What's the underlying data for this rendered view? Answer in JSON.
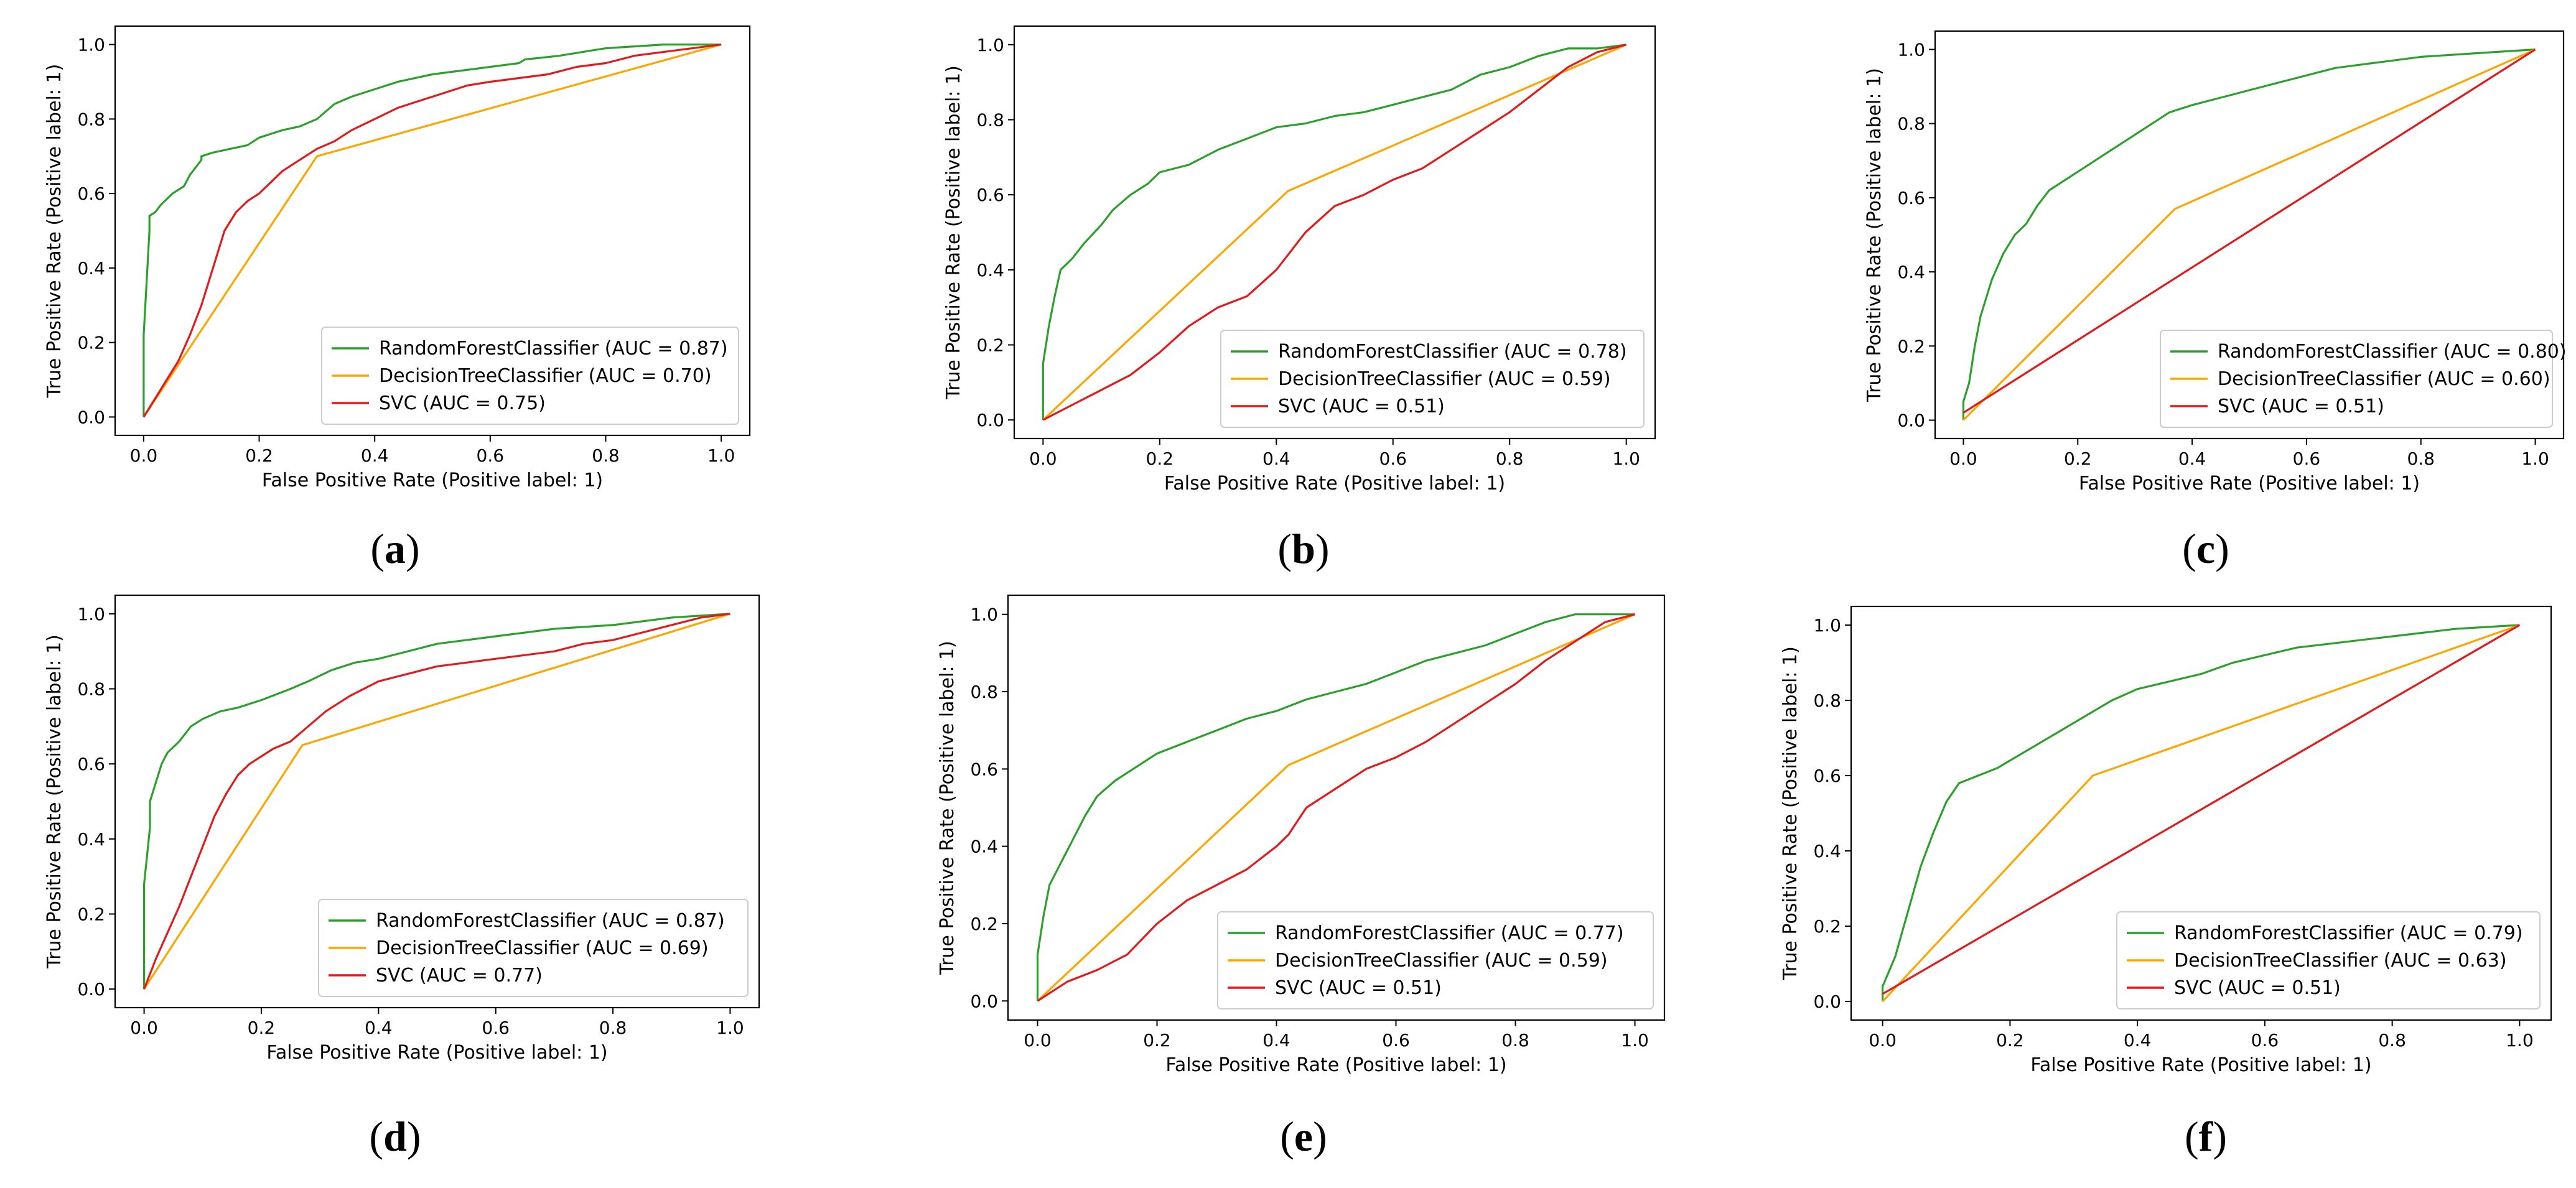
{
  "chart_data": [
    {
      "type": "line",
      "panel_label": "(a)",
      "label_letter": "a",
      "xlabel": "False Positive Rate (Positive label: 1)",
      "ylabel": "True Positive Rate (Positive label: 1)",
      "xlim": [
        0,
        1
      ],
      "ylim": [
        0,
        1
      ],
      "xticks": [
        "0.0",
        "0.2",
        "0.4",
        "0.6",
        "0.8",
        "1.0"
      ],
      "yticks": [
        "0.0",
        "0.2",
        "0.4",
        "0.6",
        "0.8",
        "1.0"
      ],
      "grid": false,
      "legend": "lower-right",
      "series": [
        {
          "name": "RandomForestClassifier (AUC = 0.87)",
          "color": "#2ca02c",
          "x": [
            0,
            0,
            0.01,
            0.01,
            0.02,
            0.03,
            0.05,
            0.06,
            0.07,
            0.08,
            0.1,
            0.1,
            0.12,
            0.15,
            0.18,
            0.2,
            0.24,
            0.27,
            0.3,
            0.33,
            0.36,
            0.4,
            0.44,
            0.5,
            0.55,
            0.6,
            0.65,
            0.66,
            0.72,
            0.8,
            0.9,
            1.0
          ],
          "y": [
            0,
            0.22,
            0.5,
            0.54,
            0.55,
            0.57,
            0.6,
            0.61,
            0.62,
            0.65,
            0.69,
            0.7,
            0.71,
            0.72,
            0.73,
            0.75,
            0.77,
            0.78,
            0.8,
            0.84,
            0.86,
            0.88,
            0.9,
            0.92,
            0.93,
            0.94,
            0.95,
            0.96,
            0.97,
            0.99,
            1.0,
            1.0
          ]
        },
        {
          "name": "DecisionTreeClassifier (AUC = 0.70)",
          "color": "#ffa500",
          "x": [
            0,
            0.3,
            1.0
          ],
          "y": [
            0,
            0.7,
            1.0
          ]
        },
        {
          "name": "SVC (AUC = 0.75)",
          "color": "#e31a1c",
          "x": [
            0,
            0.02,
            0.04,
            0.06,
            0.08,
            0.1,
            0.12,
            0.14,
            0.16,
            0.18,
            0.2,
            0.22,
            0.24,
            0.26,
            0.28,
            0.3,
            0.33,
            0.36,
            0.4,
            0.44,
            0.48,
            0.52,
            0.56,
            0.6,
            0.65,
            0.7,
            0.75,
            0.8,
            0.85,
            0.9,
            0.95,
            1.0
          ],
          "y": [
            0,
            0.05,
            0.1,
            0.15,
            0.22,
            0.3,
            0.4,
            0.5,
            0.55,
            0.58,
            0.6,
            0.63,
            0.66,
            0.68,
            0.7,
            0.72,
            0.74,
            0.77,
            0.8,
            0.83,
            0.85,
            0.87,
            0.89,
            0.9,
            0.91,
            0.92,
            0.94,
            0.95,
            0.97,
            0.98,
            0.99,
            1.0
          ]
        }
      ]
    },
    {
      "type": "line",
      "panel_label": "(b)",
      "label_letter": "b",
      "xlabel": "False Positive Rate (Positive label: 1)",
      "ylabel": "True Positive Rate (Positive label: 1)",
      "xlim": [
        0,
        1
      ],
      "ylim": [
        0,
        1
      ],
      "xticks": [
        "0.0",
        "0.2",
        "0.4",
        "0.6",
        "0.8",
        "1.0"
      ],
      "yticks": [
        "0.0",
        "0.2",
        "0.4",
        "0.6",
        "0.8",
        "1.0"
      ],
      "grid": false,
      "legend": "lower-right",
      "series": [
        {
          "name": "RandomForestClassifier (AUC = 0.78)",
          "color": "#2ca02c",
          "x": [
            0,
            0,
            0.01,
            0.02,
            0.03,
            0.05,
            0.07,
            0.1,
            0.12,
            0.15,
            0.18,
            0.2,
            0.25,
            0.3,
            0.35,
            0.4,
            0.45,
            0.5,
            0.55,
            0.6,
            0.65,
            0.7,
            0.75,
            0.8,
            0.85,
            0.9,
            0.95,
            1.0
          ],
          "y": [
            0,
            0.15,
            0.25,
            0.33,
            0.4,
            0.43,
            0.47,
            0.52,
            0.56,
            0.6,
            0.63,
            0.66,
            0.68,
            0.72,
            0.75,
            0.78,
            0.79,
            0.81,
            0.82,
            0.84,
            0.86,
            0.88,
            0.92,
            0.94,
            0.97,
            0.99,
            0.99,
            1.0
          ]
        },
        {
          "name": "DecisionTreeClassifier (AUC = 0.59)",
          "color": "#ffa500",
          "x": [
            0,
            0.42,
            1.0
          ],
          "y": [
            0,
            0.61,
            1.0
          ]
        },
        {
          "name": "SVC (AUC = 0.51)",
          "color": "#e31a1c",
          "x": [
            0,
            0.05,
            0.1,
            0.15,
            0.2,
            0.25,
            0.3,
            0.35,
            0.4,
            0.42,
            0.45,
            0.5,
            0.55,
            0.6,
            0.65,
            0.7,
            0.75,
            0.8,
            0.85,
            0.9,
            0.95,
            1.0
          ],
          "y": [
            0,
            0.04,
            0.08,
            0.12,
            0.18,
            0.25,
            0.3,
            0.33,
            0.4,
            0.44,
            0.5,
            0.57,
            0.6,
            0.64,
            0.67,
            0.72,
            0.77,
            0.82,
            0.88,
            0.94,
            0.98,
            1.0
          ]
        }
      ]
    },
    {
      "type": "line",
      "panel_label": "(c)",
      "label_letter": "c",
      "xlabel": "False Positive Rate (Positive label: 1)",
      "ylabel": "True Positive Rate (Positive label: 1)",
      "xlim": [
        0,
        1
      ],
      "ylim": [
        0,
        1
      ],
      "xticks": [
        "0.0",
        "0.2",
        "0.4",
        "0.6",
        "0.8",
        "1.0"
      ],
      "yticks": [
        "0.0",
        "0.2",
        "0.4",
        "0.6",
        "0.8",
        "1.0"
      ],
      "grid": false,
      "legend": "lower-right",
      "series": [
        {
          "name": "RandomForestClassifier (AUC = 0.80)",
          "color": "#2ca02c",
          "x": [
            0,
            0,
            0.01,
            0.02,
            0.03,
            0.04,
            0.05,
            0.07,
            0.09,
            0.11,
            0.13,
            0.15,
            0.18,
            0.2,
            0.23,
            0.26,
            0.3,
            0.33,
            0.36,
            0.4,
            0.45,
            0.5,
            0.55,
            0.6,
            0.65,
            0.7,
            0.75,
            0.8,
            0.9,
            1.0
          ],
          "y": [
            0,
            0.05,
            0.1,
            0.2,
            0.28,
            0.33,
            0.38,
            0.45,
            0.5,
            0.53,
            0.58,
            0.62,
            0.65,
            0.67,
            0.7,
            0.73,
            0.77,
            0.8,
            0.83,
            0.85,
            0.87,
            0.89,
            0.91,
            0.93,
            0.95,
            0.96,
            0.97,
            0.98,
            0.99,
            1.0
          ]
        },
        {
          "name": "DecisionTreeClassifier (AUC = 0.60)",
          "color": "#ffa500",
          "x": [
            0,
            0.37,
            1.0
          ],
          "y": [
            0,
            0.57,
            1.0
          ]
        },
        {
          "name": "SVC (AUC = 0.51)",
          "color": "#e31a1c",
          "x": [
            0,
            1.0
          ],
          "y": [
            0.02,
            1.0
          ]
        }
      ]
    },
    {
      "type": "line",
      "panel_label": "(d)",
      "label_letter": "d",
      "xlabel": "False Positive Rate (Positive label: 1)",
      "ylabel": "True Positive Rate (Positive label: 1)",
      "xlim": [
        0,
        1
      ],
      "ylim": [
        0,
        1
      ],
      "xticks": [
        "0.0",
        "0.2",
        "0.4",
        "0.6",
        "0.8",
        "1.0"
      ],
      "yticks": [
        "0.0",
        "0.2",
        "0.4",
        "0.6",
        "0.8",
        "1.0"
      ],
      "grid": false,
      "legend": "lower-right",
      "series": [
        {
          "name": "RandomForestClassifier (AUC = 0.87)",
          "color": "#2ca02c",
          "x": [
            0,
            0,
            0.01,
            0.01,
            0.02,
            0.03,
            0.04,
            0.06,
            0.08,
            0.1,
            0.13,
            0.16,
            0.2,
            0.25,
            0.28,
            0.32,
            0.36,
            0.4,
            0.45,
            0.5,
            0.55,
            0.6,
            0.7,
            0.8,
            0.9,
            1.0
          ],
          "y": [
            0,
            0.28,
            0.43,
            0.5,
            0.55,
            0.6,
            0.63,
            0.66,
            0.7,
            0.72,
            0.74,
            0.75,
            0.77,
            0.8,
            0.82,
            0.85,
            0.87,
            0.88,
            0.9,
            0.92,
            0.93,
            0.94,
            0.96,
            0.97,
            0.99,
            1.0
          ]
        },
        {
          "name": "DecisionTreeClassifier (AUC = 0.69)",
          "color": "#ffa500",
          "x": [
            0,
            0.27,
            1.0
          ],
          "y": [
            0,
            0.65,
            1.0
          ]
        },
        {
          "name": "SVC (AUC = 0.77)",
          "color": "#e31a1c",
          "x": [
            0,
            0.02,
            0.04,
            0.06,
            0.08,
            0.1,
            0.12,
            0.14,
            0.16,
            0.18,
            0.2,
            0.22,
            0.25,
            0.28,
            0.31,
            0.35,
            0.4,
            0.45,
            0.5,
            0.55,
            0.6,
            0.65,
            0.7,
            0.75,
            0.8,
            0.85,
            0.9,
            0.95,
            1.0
          ],
          "y": [
            0,
            0.08,
            0.15,
            0.22,
            0.3,
            0.38,
            0.46,
            0.52,
            0.57,
            0.6,
            0.62,
            0.64,
            0.66,
            0.7,
            0.74,
            0.78,
            0.82,
            0.84,
            0.86,
            0.87,
            0.88,
            0.89,
            0.9,
            0.92,
            0.93,
            0.95,
            0.97,
            0.99,
            1.0
          ]
        }
      ]
    },
    {
      "type": "line",
      "panel_label": "(e)",
      "label_letter": "e",
      "xlabel": "False Positive Rate (Positive label: 1)",
      "ylabel": "True Positive Rate (Positive label: 1)",
      "xlim": [
        0,
        1
      ],
      "ylim": [
        0,
        1
      ],
      "xticks": [
        "0.0",
        "0.2",
        "0.4",
        "0.6",
        "0.8",
        "1.0"
      ],
      "yticks": [
        "0.0",
        "0.2",
        "0.4",
        "0.6",
        "0.8",
        "1.0"
      ],
      "grid": false,
      "legend": "lower-right",
      "series": [
        {
          "name": "RandomForestClassifier (AUC = 0.77)",
          "color": "#2ca02c",
          "x": [
            0,
            0,
            0.01,
            0.02,
            0.04,
            0.06,
            0.08,
            0.1,
            0.13,
            0.16,
            0.2,
            0.25,
            0.3,
            0.35,
            0.4,
            0.45,
            0.5,
            0.55,
            0.6,
            0.65,
            0.7,
            0.75,
            0.8,
            0.85,
            0.9,
            0.95,
            1.0
          ],
          "y": [
            0,
            0.12,
            0.22,
            0.3,
            0.36,
            0.42,
            0.48,
            0.53,
            0.57,
            0.6,
            0.64,
            0.67,
            0.7,
            0.73,
            0.75,
            0.78,
            0.8,
            0.82,
            0.85,
            0.88,
            0.9,
            0.92,
            0.95,
            0.98,
            1.0,
            1.0,
            1.0
          ]
        },
        {
          "name": "DecisionTreeClassifier (AUC = 0.59)",
          "color": "#ffa500",
          "x": [
            0,
            0.42,
            1.0
          ],
          "y": [
            0,
            0.61,
            1.0
          ]
        },
        {
          "name": "SVC (AUC = 0.51)",
          "color": "#e31a1c",
          "x": [
            0,
            0.05,
            0.1,
            0.15,
            0.2,
            0.25,
            0.3,
            0.35,
            0.4,
            0.42,
            0.45,
            0.5,
            0.55,
            0.6,
            0.65,
            0.7,
            0.75,
            0.8,
            0.85,
            0.9,
            0.95,
            1.0
          ],
          "y": [
            0,
            0.05,
            0.08,
            0.12,
            0.2,
            0.26,
            0.3,
            0.34,
            0.4,
            0.43,
            0.5,
            0.55,
            0.6,
            0.63,
            0.67,
            0.72,
            0.77,
            0.82,
            0.88,
            0.93,
            0.98,
            1.0
          ]
        }
      ]
    },
    {
      "type": "line",
      "panel_label": "(f)",
      "label_letter": "f",
      "xlabel": "False Positive Rate (Positive label: 1)",
      "ylabel": "True Positive Rate (Positive label: 1)",
      "xlim": [
        0,
        1
      ],
      "ylim": [
        0,
        1
      ],
      "xticks": [
        "0.0",
        "0.2",
        "0.4",
        "0.6",
        "0.8",
        "1.0"
      ],
      "yticks": [
        "0.0",
        "0.2",
        "0.4",
        "0.6",
        "0.8",
        "1.0"
      ],
      "grid": false,
      "legend": "lower-right",
      "series": [
        {
          "name": "RandomForestClassifier (AUC = 0.79)",
          "color": "#2ca02c",
          "x": [
            0,
            0,
            0.01,
            0.02,
            0.03,
            0.04,
            0.05,
            0.06,
            0.08,
            0.1,
            0.12,
            0.15,
            0.18,
            0.2,
            0.23,
            0.26,
            0.3,
            0.33,
            0.36,
            0.4,
            0.45,
            0.5,
            0.55,
            0.6,
            0.65,
            0.7,
            0.8,
            0.9,
            1.0
          ],
          "y": [
            0,
            0.04,
            0.08,
            0.12,
            0.18,
            0.24,
            0.3,
            0.36,
            0.45,
            0.53,
            0.58,
            0.6,
            0.62,
            0.64,
            0.67,
            0.7,
            0.74,
            0.77,
            0.8,
            0.83,
            0.85,
            0.87,
            0.9,
            0.92,
            0.94,
            0.95,
            0.97,
            0.99,
            1.0
          ]
        },
        {
          "name": "DecisionTreeClassifier (AUC = 0.63)",
          "color": "#ffa500",
          "x": [
            0,
            0.33,
            1.0
          ],
          "y": [
            0,
            0.6,
            1.0
          ]
        },
        {
          "name": "SVC (AUC = 0.51)",
          "color": "#e31a1c",
          "x": [
            0,
            1.0
          ],
          "y": [
            0.02,
            1.0
          ]
        }
      ]
    }
  ]
}
